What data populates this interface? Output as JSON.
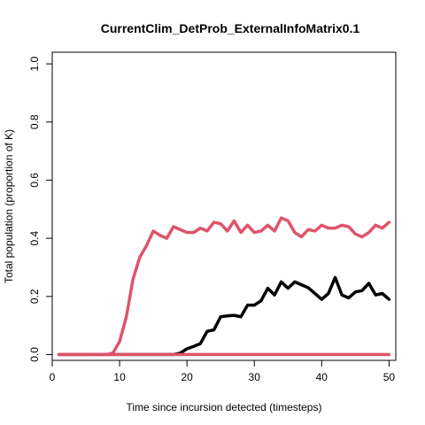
{
  "chart_data": {
    "type": "line",
    "title": "CurrentClim_DetProb_ExternalInfoMatrix0.1",
    "xlabel": "Time since incursion detected (timesteps)",
    "ylabel": "Total population (proportion of K)",
    "xlim": [
      0,
      51
    ],
    "ylim": [
      -0.02,
      1.04
    ],
    "x_ticks": [
      0,
      10,
      20,
      30,
      40,
      50
    ],
    "y_ticks": [
      0.0,
      0.2,
      0.4,
      0.6,
      0.8,
      1.0
    ],
    "x_tick_labels": [
      "0",
      "10",
      "20",
      "30",
      "40",
      "50"
    ],
    "y_tick_labels": [
      "0.0",
      "0.2",
      "0.4",
      "0.6",
      "0.8",
      "1.0"
    ],
    "grid": false,
    "legend": "none",
    "x": [
      1,
      2,
      3,
      4,
      5,
      6,
      7,
      8,
      9,
      10,
      11,
      12,
      13,
      14,
      15,
      16,
      17,
      18,
      19,
      20,
      21,
      22,
      23,
      24,
      25,
      26,
      27,
      28,
      29,
      30,
      31,
      32,
      33,
      34,
      35,
      36,
      37,
      38,
      39,
      40,
      41,
      42,
      43,
      44,
      45,
      46,
      47,
      48,
      49,
      50
    ],
    "series": [
      {
        "color": "#000000",
        "values": [
          0,
          0,
          0,
          0,
          0,
          0,
          0,
          0,
          0,
          0,
          0,
          0,
          0,
          0,
          0,
          0,
          0,
          0,
          0.005,
          0.02,
          0.028,
          0.038,
          0.08,
          0.085,
          0.13,
          0.133,
          0.135,
          0.13,
          0.17,
          0.17,
          0.185,
          0.228,
          0.205,
          0.25,
          0.228,
          0.25,
          0.24,
          0.23,
          0.21,
          0.19,
          0.21,
          0.265,
          0.205,
          0.195,
          0.215,
          0.22,
          0.245,
          0.205,
          0.21,
          0.19
        ]
      },
      {
        "color": "#DF536B",
        "values": [
          0,
          0,
          0,
          0,
          0,
          0,
          0,
          0,
          0.005,
          0.045,
          0.13,
          0.26,
          0.335,
          0.375,
          0.425,
          0.41,
          0.4,
          0.44,
          0.43,
          0.42,
          0.42,
          0.435,
          0.425,
          0.455,
          0.45,
          0.425,
          0.46,
          0.42,
          0.445,
          0.42,
          0.425,
          0.445,
          0.425,
          0.47,
          0.46,
          0.42,
          0.405,
          0.43,
          0.425,
          0.445,
          0.435,
          0.435,
          0.445,
          0.44,
          0.415,
          0.405,
          0.42,
          0.445,
          0.435,
          0.455
        ]
      },
      {
        "color": "#DF536B",
        "values": [
          0,
          0,
          0,
          0,
          0,
          0,
          0,
          0,
          0,
          0,
          0,
          0,
          0,
          0,
          0,
          0,
          0,
          0,
          0,
          0,
          0,
          0,
          0,
          0,
          0,
          0,
          0,
          0,
          0,
          0,
          0,
          0,
          0,
          0,
          0,
          0,
          0,
          0,
          0,
          0,
          0,
          0,
          0,
          0,
          0,
          0,
          0,
          0,
          0,
          0
        ]
      }
    ]
  }
}
